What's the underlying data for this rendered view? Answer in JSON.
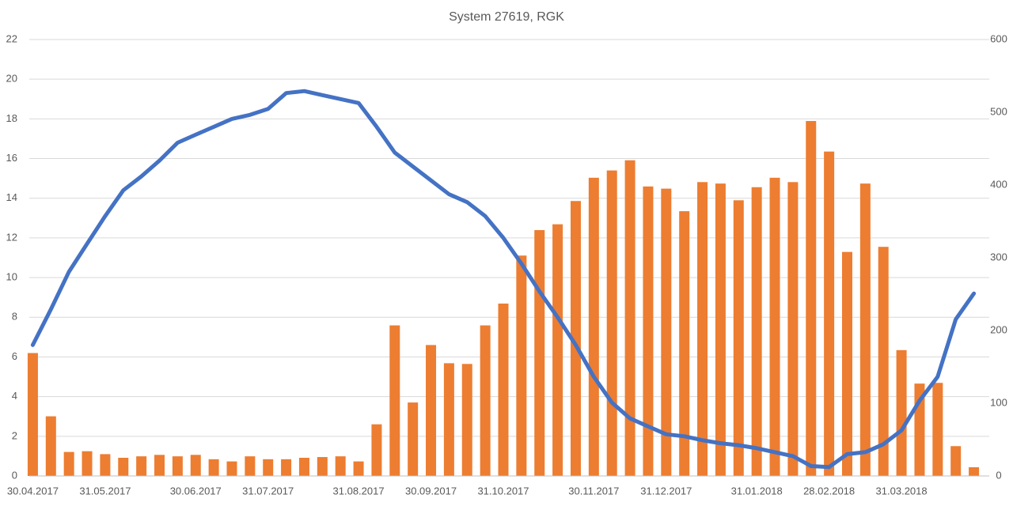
{
  "chart_data": {
    "type": "bar",
    "title": "System 27619, RGK",
    "categories": [
      "30.04.2017",
      null,
      null,
      null,
      "31.05.2017",
      null,
      null,
      null,
      null,
      "30.06.2017",
      null,
      null,
      null,
      "31.07.2017",
      null,
      null,
      null,
      null,
      "31.08.2017",
      null,
      null,
      null,
      "30.09.2017",
      null,
      null,
      null,
      "31.10.2017",
      null,
      null,
      null,
      null,
      "30.11.2017",
      null,
      null,
      null,
      "31.12.2017",
      null,
      null,
      null,
      null,
      "31.01.2018",
      null,
      null,
      null,
      "28.02.2018",
      null,
      null,
      null,
      "31.03.2018",
      null,
      null,
      null,
      null
    ],
    "series": [
      {
        "type": "bar",
        "axis": "y2",
        "color": "#ed7d31",
        "values": [
          169,
          82,
          33,
          34,
          30,
          25,
          27,
          29,
          27,
          29,
          23,
          20,
          27,
          23,
          23,
          25,
          26,
          27,
          20,
          71,
          207,
          101,
          180,
          155,
          154,
          207,
          237,
          303,
          338,
          346,
          378,
          410,
          420,
          434,
          398,
          395,
          364,
          404,
          402,
          379,
          397,
          410,
          404,
          488,
          446,
          308,
          402,
          315,
          173,
          127,
          128,
          41,
          12
        ]
      },
      {
        "type": "line",
        "axis": "y",
        "color": "#4472c4",
        "values": [
          6.6,
          8.4,
          10.3,
          11.7,
          13.1,
          14.4,
          15.1,
          15.9,
          16.8,
          17.2,
          17.6,
          18.0,
          18.2,
          18.5,
          19.3,
          19.4,
          19.2,
          19.0,
          18.8,
          17.6,
          16.3,
          15.6,
          14.9,
          14.2,
          13.8,
          13.1,
          12.0,
          10.7,
          9.3,
          8.0,
          6.6,
          5.0,
          3.7,
          2.9,
          2.5,
          2.1,
          2.0,
          1.8,
          1.65,
          1.55,
          1.4,
          1.2,
          1.0,
          0.5,
          0.45,
          1.1,
          1.2,
          1.6,
          2.3,
          3.8,
          5.0,
          7.9,
          9.2
        ]
      }
    ],
    "ylim": [
      0,
      22
    ],
    "yticks": [
      0,
      2,
      4,
      6,
      8,
      10,
      12,
      14,
      16,
      18,
      20,
      22
    ],
    "y2lim": [
      0,
      600
    ],
    "y2ticks": [
      0,
      100,
      200,
      300,
      400,
      500,
      600
    ],
    "grid": true
  }
}
